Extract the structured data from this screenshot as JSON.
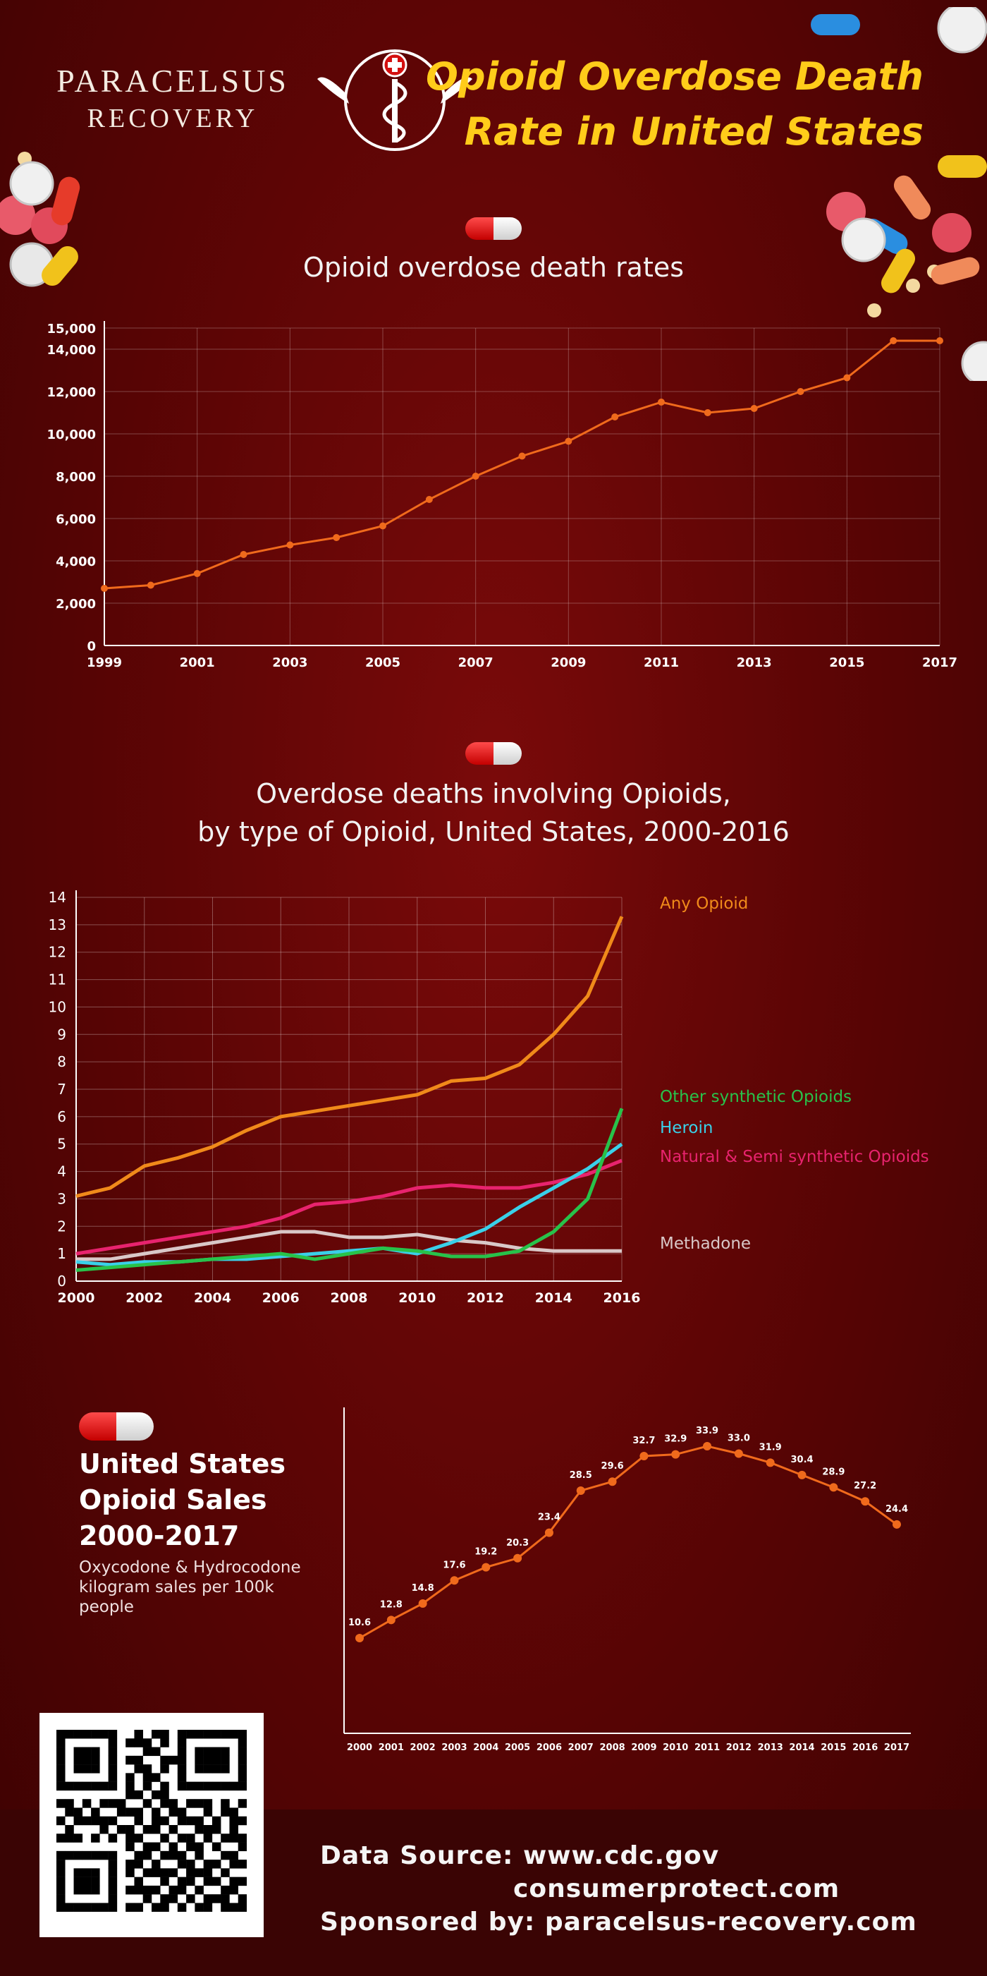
{
  "header": {
    "brand_name": "PARACELSUS",
    "brand_sub": "RECOVERY",
    "title_line1": "Opioid Overdose Death",
    "title_line2": "Rate in United States"
  },
  "sections": {
    "chart1_title": "Opioid overdose death rates",
    "chart2_title_line1": "Overdose deaths involving Opioids,",
    "chart2_title_line2": "by type of Opioid, United States, 2000-2016",
    "chart3_title_line1": "United States",
    "chart3_title_line2": "Opioid Sales",
    "chart3_title_line3": "2000-2017",
    "chart3_subtitle": "Oxycodone & Hydrocodone kilogram sales per 100k people"
  },
  "footer": {
    "data_source_label": "Data Source:",
    "source1": "www.cdc.gov",
    "source2": "consumerprotect.com",
    "sponsor_label": "Sponsored by:",
    "sponsor": "paracelsus-recovery.com"
  },
  "colors": {
    "accent_yellow": "#ffcc1a",
    "line_orange": "#f06a1c",
    "any_opioid": "#f08a1a",
    "other_synthetic": "#28c24a",
    "heroin": "#3ad0e8",
    "natural_semi": "#e8236e",
    "methadone": "#d9c8c8"
  },
  "chart_data": [
    {
      "type": "line",
      "title": "Opioid overdose death rates",
      "x": [
        1999,
        2000,
        2001,
        2002,
        2003,
        2004,
        2005,
        2006,
        2007,
        2008,
        2009,
        2010,
        2011,
        2012,
        2013,
        2014,
        2015,
        2016,
        2017
      ],
      "xticks": [
        "1999",
        "2001",
        "2003",
        "2005",
        "2007",
        "2009",
        "2011",
        "2013",
        "2015",
        "2017"
      ],
      "yticks": [
        "0",
        "2,000",
        "4,000",
        "6,000",
        "8,000",
        "10,000",
        "12,000",
        "14,000",
        "15,000"
      ],
      "ytick_values": [
        0,
        2000,
        4000,
        6000,
        8000,
        10000,
        12000,
        14000,
        15000
      ],
      "values": [
        2700,
        2850,
        3400,
        4300,
        4750,
        5100,
        5650,
        6900,
        8000,
        8950,
        9650,
        10800,
        11500,
        11000,
        11200,
        12000,
        12650,
        14400,
        14400
      ],
      "ylim": [
        0,
        15000
      ],
      "grid": true
    },
    {
      "type": "line",
      "title": "Overdose deaths involving Opioids, by type of Opioid, United States, 2000-2016",
      "x": [
        2000,
        2001,
        2002,
        2003,
        2004,
        2005,
        2006,
        2007,
        2008,
        2009,
        2010,
        2011,
        2012,
        2013,
        2014,
        2015,
        2016
      ],
      "xticks": [
        "2000",
        "2002",
        "2004",
        "2006",
        "2008",
        "2010",
        "2012",
        "2014",
        "2016"
      ],
      "yticks": [
        "0",
        "1",
        "2",
        "3",
        "4",
        "5",
        "6",
        "7",
        "8",
        "9",
        "10",
        "11",
        "12",
        "13",
        "14"
      ],
      "ylim": [
        0,
        14
      ],
      "grid": true,
      "legend_placement": "right",
      "series": [
        {
          "name": "Any Opioid",
          "values": [
            3.1,
            3.4,
            4.2,
            4.5,
            4.9,
            5.5,
            6.0,
            6.2,
            6.4,
            6.6,
            6.8,
            7.3,
            7.4,
            7.9,
            9.0,
            10.4,
            13.3
          ]
        },
        {
          "name": "Other synthetic Opioids",
          "values": [
            0.4,
            0.5,
            0.6,
            0.7,
            0.8,
            0.9,
            1.0,
            0.8,
            1.0,
            1.2,
            1.1,
            0.9,
            0.9,
            1.1,
            1.8,
            3.0,
            6.3
          ]
        },
        {
          "name": "Heroin",
          "values": [
            0.7,
            0.6,
            0.7,
            0.7,
            0.8,
            0.8,
            0.9,
            1.0,
            1.1,
            1.2,
            1.0,
            1.4,
            1.9,
            2.7,
            3.4,
            4.1,
            5.0
          ]
        },
        {
          "name": "Natural & Semi synthetic Opioids",
          "values": [
            1.0,
            1.2,
            1.4,
            1.6,
            1.8,
            2.0,
            2.3,
            2.8,
            2.9,
            3.1,
            3.4,
            3.5,
            3.4,
            3.4,
            3.6,
            3.9,
            4.4
          ]
        },
        {
          "name": "Methadone",
          "values": [
            0.8,
            0.8,
            1.0,
            1.2,
            1.4,
            1.6,
            1.8,
            1.8,
            1.6,
            1.6,
            1.7,
            1.5,
            1.4,
            1.2,
            1.1,
            1.1,
            1.1
          ]
        }
      ]
    },
    {
      "type": "line",
      "title": "United States Opioid Sales 2000-2017",
      "subtitle": "Oxycodone & Hydrocodone kilogram sales per 100k people",
      "x": [
        "2000",
        "2001",
        "2002",
        "2003",
        "2004",
        "2005",
        "2006",
        "2007",
        "2008",
        "2009",
        "2010",
        "2011",
        "2012",
        "2013",
        "2014",
        "2015",
        "2016",
        "2017"
      ],
      "values": [
        10.6,
        12.8,
        14.8,
        17.6,
        19.2,
        20.3,
        23.4,
        28.5,
        29.6,
        32.7,
        32.9,
        33.9,
        33.0,
        31.9,
        30.4,
        28.9,
        27.2,
        24.4
      ],
      "data_labels": [
        "10.6",
        "12.8",
        "14.8",
        "17.6",
        "19.2",
        "20.3",
        "23.4",
        "28.5",
        "29.6",
        "32.7",
        "32.9",
        "33.9",
        "33.0",
        "31.9",
        "30.4",
        "28.9",
        "27.2",
        "24.4"
      ],
      "grid": false
    }
  ],
  "qr": {
    "rows": [
      "1111111001011011111111",
      "1000001011101010000001",
      "1011101000110010111101",
      "1011101011001110111101",
      "1011101001101010111101",
      "1000001010110010000001",
      "1111111010101011111111",
      "0000000011011000000000",
      "1101011100101101110101",
      "0110100111010110010110",
      "1011111001011011101011",
      "0100010110110100111010",
      "1110101011001011010111",
      "0000000010110101101001",
      "1111111001101110100110",
      "1000001011010011011011",
      "1011101010111101110100",
      "1011101001001011011011",
      "1011101011110110100110",
      "1000001000101101011101",
      "1111111011011010110111",
      "0000000000000000000000"
    ]
  }
}
